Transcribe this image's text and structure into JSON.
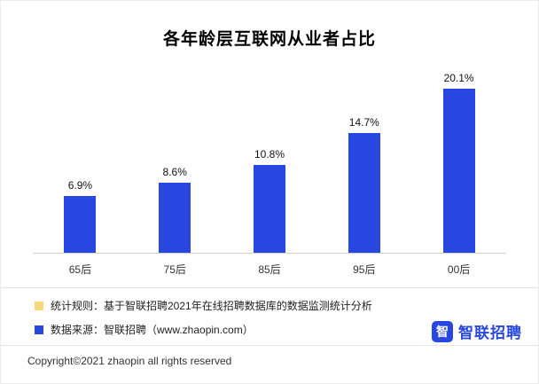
{
  "title": "各年龄层互联网从业者占比",
  "chart_data": {
    "type": "bar",
    "categories": [
      "65后",
      "75后",
      "85后",
      "95后",
      "00后"
    ],
    "values": [
      6.9,
      8.6,
      10.8,
      14.7,
      20.1
    ],
    "unit": "%",
    "title": "各年龄层互联网从业者占比",
    "xlabel": "",
    "ylabel": "",
    "ylim": [
      0,
      22
    ],
    "grid": false,
    "legend_position": "none",
    "bar_color": "#2847e0",
    "value_labels_shown": true
  },
  "legend": {
    "rule": {
      "label": "统计规则：基于智联招聘2021年在线招聘数据库的数据监测统计分析",
      "color": "#f8d878"
    },
    "source": {
      "label": "数据来源：智联招聘（www.zhaopin.com）",
      "color": "#2847e0"
    }
  },
  "footer": {
    "copyright": "Copyright©2021 zhaopin  all rights reserved"
  },
  "logo": {
    "icon_glyph": "智",
    "text": "智联招聘",
    "color": "#2847e0"
  }
}
